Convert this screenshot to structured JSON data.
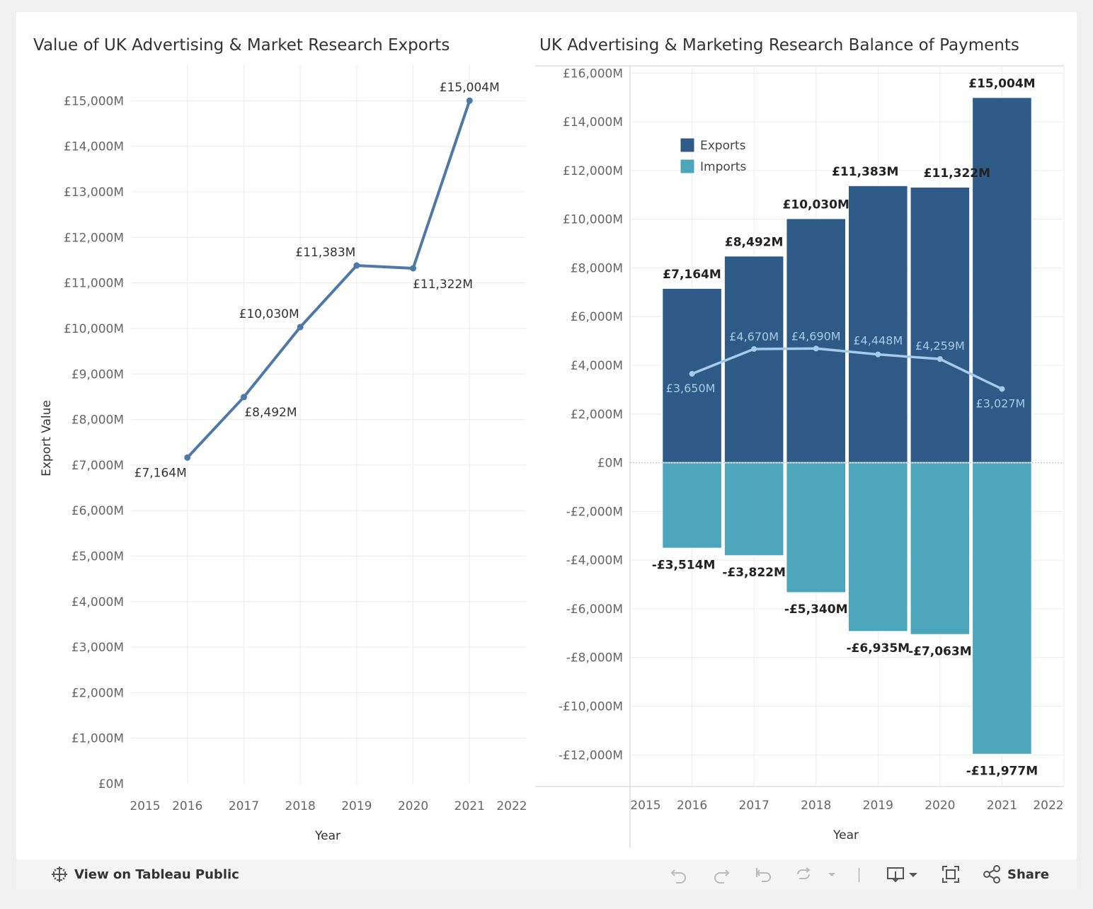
{
  "left_chart": {
    "title": "Value of UK Advertising & Market Research Exports"
  },
  "right_chart": {
    "title": "UK Advertising & Marketing Research Balance of Payments"
  },
  "chart_data": [
    {
      "type": "line",
      "title": "Value of UK Advertising & Market Research Exports",
      "xlabel": "Year",
      "ylabel": "Export Value",
      "x_ticks": [
        "2015",
        "2016",
        "2017",
        "2018",
        "2019",
        "2020",
        "2021",
        "2022"
      ],
      "xlim": [
        2015,
        2022
      ],
      "ylim": [
        0,
        15800
      ],
      "y_ticks": [
        0,
        1000,
        2000,
        3000,
        4000,
        5000,
        6000,
        7000,
        8000,
        9000,
        10000,
        11000,
        12000,
        13000,
        14000,
        15000
      ],
      "y_tick_labels": [
        "£0M",
        "£1,000M",
        "£2,000M",
        "£3,000M",
        "£4,000M",
        "£5,000M",
        "£6,000M",
        "£7,000M",
        "£8,000M",
        "£9,000M",
        "£10,000M",
        "£11,000M",
        "£12,000M",
        "£13,000M",
        "£14,000M",
        "£15,000M"
      ],
      "grid": true,
      "series": [
        {
          "x": [
            2016,
            2017,
            2018,
            2019,
            2020,
            2021
          ],
          "values": [
            7164,
            8492,
            10030,
            11383,
            11322,
            15004
          ],
          "labels": [
            "£7,164M",
            "£8,492M",
            "£10,030M",
            "£11,383M",
            "£11,322M",
            "£15,004M"
          ],
          "color": "#4e79a7"
        }
      ]
    },
    {
      "type": "bar",
      "title": "UK Advertising & Marketing Research Balance of Payments",
      "xlabel": "Year",
      "ylabel": "",
      "x_ticks": [
        "2015",
        "2016",
        "2017",
        "2018",
        "2019",
        "2020",
        "2021",
        "2022"
      ],
      "xlim": [
        2015,
        2022
      ],
      "ylim": [
        -13300,
        16300
      ],
      "y_ticks": [
        -12000,
        -10000,
        -8000,
        -6000,
        -4000,
        -2000,
        0,
        2000,
        4000,
        6000,
        8000,
        10000,
        12000,
        14000,
        16000
      ],
      "y_tick_labels": [
        "-£12,000M",
        "-£10,000M",
        "-£8,000M",
        "-£6,000M",
        "-£4,000M",
        "-£2,000M",
        "£0M",
        "£2,000M",
        "£4,000M",
        "£6,000M",
        "£8,000M",
        "£10,000M",
        "£12,000M",
        "£14,000M",
        "£16,000M"
      ],
      "grid": true,
      "legend": {
        "position": "top-left",
        "items": [
          {
            "name": "Exports",
            "color": "#2d5a87"
          },
          {
            "name": "Imports",
            "color": "#4ba6bb"
          }
        ]
      },
      "x": [
        2016,
        2017,
        2018,
        2019,
        2020,
        2021
      ],
      "series": [
        {
          "name": "Exports",
          "values": [
            7164,
            8492,
            10030,
            11383,
            11322,
            15004
          ],
          "labels": [
            "£7,164M",
            "£8,492M",
            "£10,030M",
            "£11,383M",
            "£11,322M",
            "£15,004M"
          ],
          "color": "#2d5a87"
        },
        {
          "name": "Imports",
          "values": [
            -3514,
            -3822,
            -5340,
            -6935,
            -7063,
            -11977
          ],
          "labels": [
            "-£3,514M",
            "-£3,822M",
            "-£5,340M",
            "-£6,935M",
            "-£7,063M",
            "-£11,977M"
          ],
          "color": "#4ba6bb"
        }
      ],
      "line_series": {
        "type": "line",
        "values": [
          3650,
          4670,
          4690,
          4448,
          4259,
          3027
        ],
        "labels": [
          "£3,650M",
          "£4,670M",
          "£4,690M",
          "£4,448M",
          "£4,259M",
          "£3,027M"
        ],
        "color": "#a6cbe8"
      }
    }
  ],
  "toolbar": {
    "view_label": "View on Tableau Public",
    "share_label": "Share",
    "icons": [
      "tableau-logo-icon",
      "undo-icon",
      "redo-icon",
      "revert-icon",
      "refresh-icon",
      "dropdown-icon",
      "download-icon",
      "fullscreen-icon",
      "share-icon"
    ]
  }
}
